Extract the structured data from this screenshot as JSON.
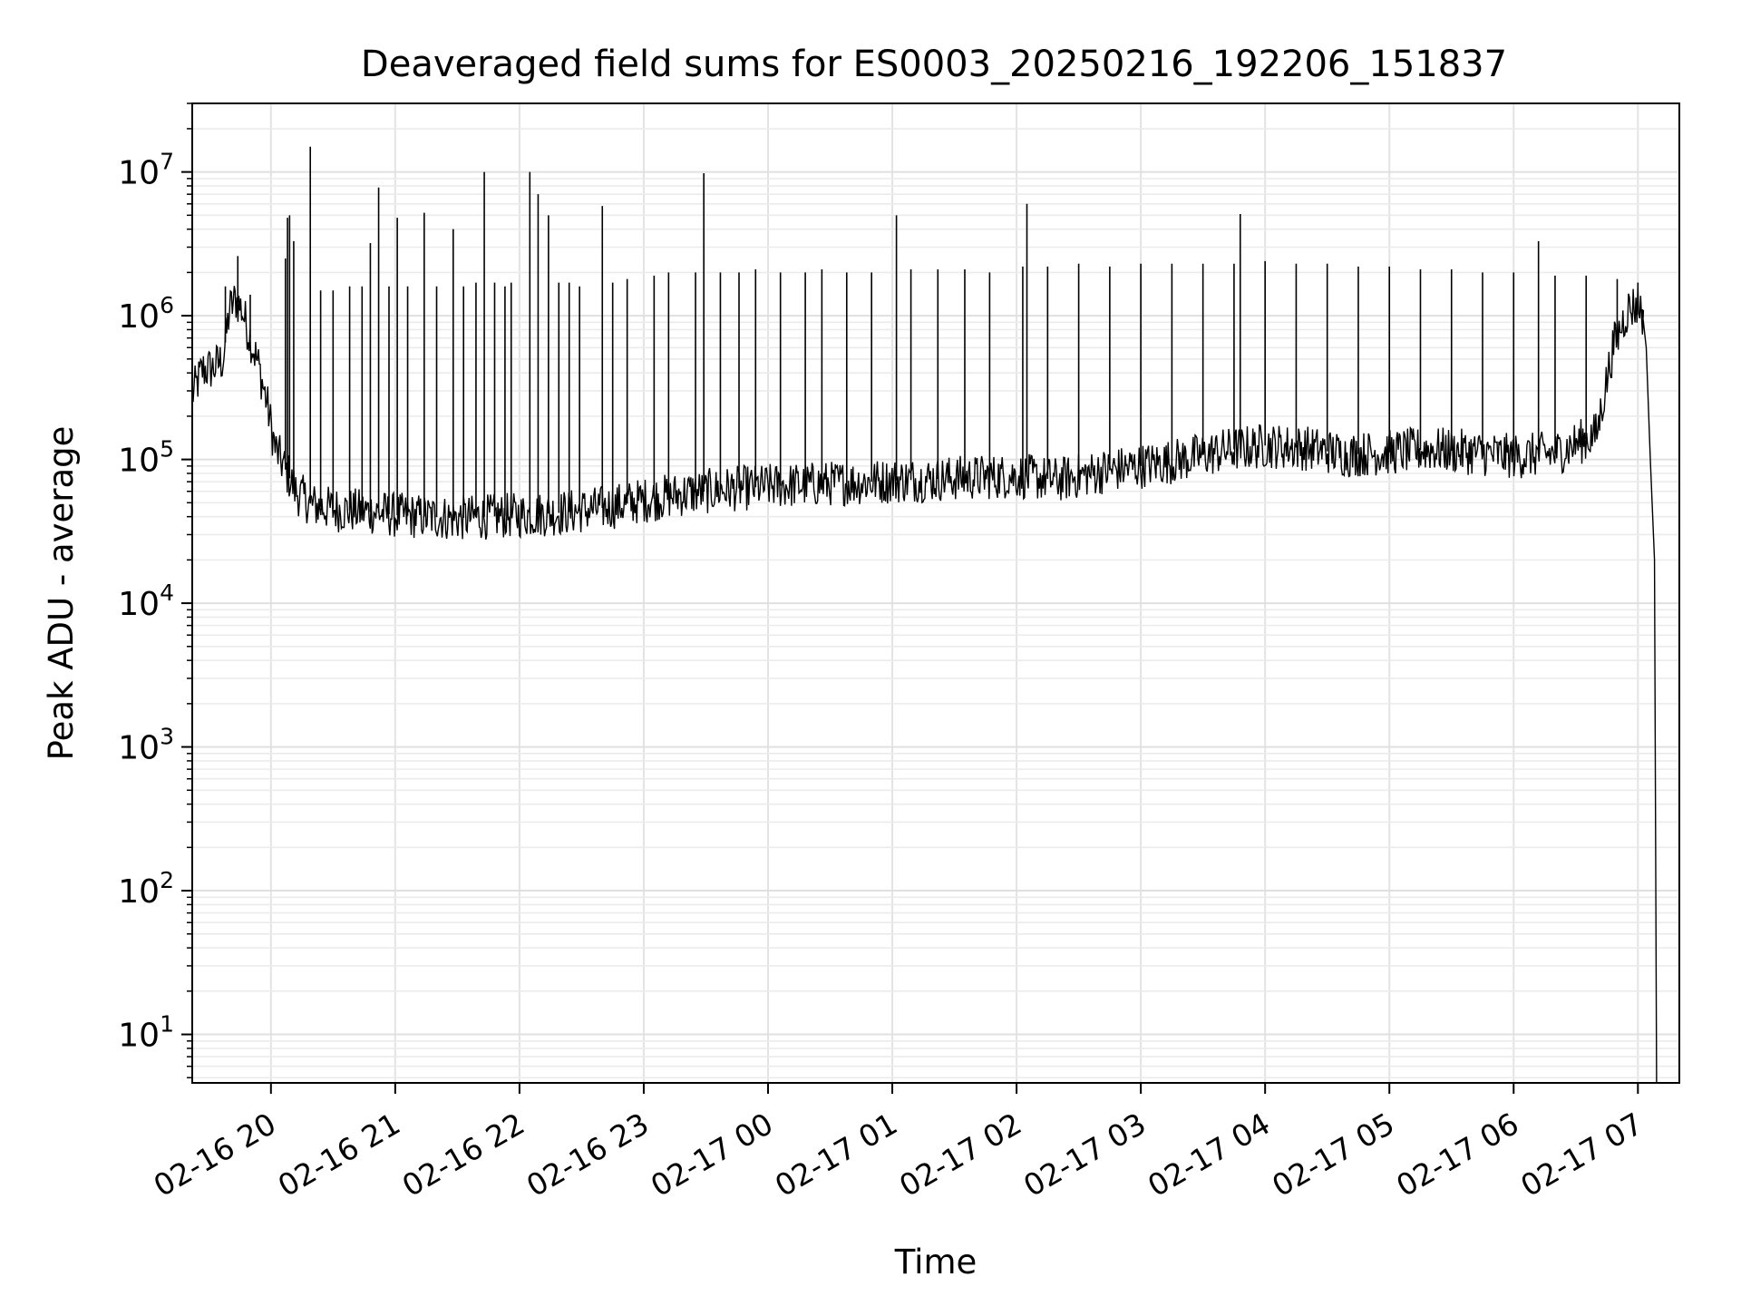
{
  "chart_data": {
    "type": "line",
    "title": "Deaveraged field sums for ES0003_20250216_192206_151837",
    "xlabel": "Time",
    "ylabel": "Peak ADU - average",
    "yscale": "log",
    "ylim": [
      4.6,
      30000000
    ],
    "xlim": [
      "2025-02-16 19:22",
      "2025-02-17 07:20"
    ],
    "grid": true,
    "x_ticks": [
      {
        "value": "2025-02-16 20:00",
        "label": "02-16 20"
      },
      {
        "value": "2025-02-16 21:00",
        "label": "02-16 21"
      },
      {
        "value": "2025-02-16 22:00",
        "label": "02-16 22"
      },
      {
        "value": "2025-02-16 23:00",
        "label": "02-16 23"
      },
      {
        "value": "2025-02-17 00:00",
        "label": "02-17 00"
      },
      {
        "value": "2025-02-17 01:00",
        "label": "02-17 01"
      },
      {
        "value": "2025-02-17 02:00",
        "label": "02-17 02"
      },
      {
        "value": "2025-02-17 03:00",
        "label": "02-17 03"
      },
      {
        "value": "2025-02-17 04:00",
        "label": "02-17 04"
      },
      {
        "value": "2025-02-17 05:00",
        "label": "02-17 05"
      },
      {
        "value": "2025-02-17 06:00",
        "label": "02-17 06"
      },
      {
        "value": "2025-02-17 07:00",
        "label": "02-17 07"
      }
    ],
    "y_ticks": [
      {
        "value": 10,
        "base": "10",
        "exp": "1"
      },
      {
        "value": 100,
        "base": "10",
        "exp": "2"
      },
      {
        "value": 1000,
        "base": "10",
        "exp": "3"
      },
      {
        "value": 10000,
        "base": "10",
        "exp": "4"
      },
      {
        "value": 100000,
        "base": "10",
        "exp": "5"
      },
      {
        "value": 1000000,
        "base": "10",
        "exp": "6"
      },
      {
        "value": 10000000,
        "base": "10",
        "exp": "7"
      }
    ],
    "series": [
      {
        "color": "#000000",
        "points": [
          [
            "2025-02-16 19:22",
            280000
          ],
          [
            "2025-02-16 19:27",
            420000
          ],
          [
            "2025-02-16 19:32",
            430000
          ],
          [
            "2025-02-16 19:37",
            500000
          ],
          [
            "2025-02-16 19:40",
            1100000
          ],
          [
            "2025-02-16 19:43",
            1300000
          ],
          [
            "2025-02-16 19:46",
            1100000
          ],
          [
            "2025-02-16 19:50",
            700000
          ],
          [
            "2025-02-16 19:54",
            450000
          ],
          [
            "2025-02-16 19:58",
            250000
          ],
          [
            "2025-02-16 20:02",
            120000
          ],
          [
            "2025-02-16 20:07",
            85000
          ],
          [
            "2025-02-16 20:12",
            60000
          ],
          [
            "2025-02-16 20:20",
            48000
          ],
          [
            "2025-02-16 20:30",
            45000
          ],
          [
            "2025-02-16 20:40",
            44000
          ],
          [
            "2025-02-16 20:50",
            43000
          ],
          [
            "2025-02-16 21:00",
            41000
          ],
          [
            "2025-02-16 21:15",
            40000
          ],
          [
            "2025-02-16 21:30",
            39000
          ],
          [
            "2025-02-16 21:45",
            40000
          ],
          [
            "2025-02-16 22:00",
            41000
          ],
          [
            "2025-02-16 22:15",
            42000
          ],
          [
            "2025-02-16 22:30",
            44000
          ],
          [
            "2025-02-16 22:45",
            47000
          ],
          [
            "2025-02-16 23:00",
            52000
          ],
          [
            "2025-02-16 23:20",
            58000
          ],
          [
            "2025-02-16 23:40",
            62000
          ],
          [
            "2025-02-17 00:00",
            65000
          ],
          [
            "2025-02-17 00:30",
            68000
          ],
          [
            "2025-02-17 01:00",
            71000
          ],
          [
            "2025-02-17 01:30",
            74000
          ],
          [
            "2025-02-17 02:00",
            77000
          ],
          [
            "2025-02-17 02:20",
            72000
          ],
          [
            "2025-02-17 02:40",
            82000
          ],
          [
            "2025-02-17 03:00",
            90000
          ],
          [
            "2025-02-17 03:20",
            100000
          ],
          [
            "2025-02-17 03:40",
            115000
          ],
          [
            "2025-02-17 04:00",
            125000
          ],
          [
            "2025-02-17 04:20",
            120000
          ],
          [
            "2025-02-17 04:40",
            108000
          ],
          [
            "2025-02-17 05:00",
            112000
          ],
          [
            "2025-02-17 05:20",
            118000
          ],
          [
            "2025-02-17 05:40",
            112000
          ],
          [
            "2025-02-17 06:00",
            105000
          ],
          [
            "2025-02-17 06:20",
            110000
          ],
          [
            "2025-02-17 06:40",
            150000
          ],
          [
            "2025-02-17 06:48",
            600000
          ],
          [
            "2025-02-17 06:55",
            1100000
          ],
          [
            "2025-02-17 07:00",
            1200000
          ],
          [
            "2025-02-17 07:02",
            1100000
          ],
          [
            "2025-02-17 07:04",
            600000
          ],
          [
            "2025-02-17 07:06",
            100000
          ],
          [
            "2025-02-17 07:08",
            20000
          ],
          [
            "2025-02-17 07:09",
            4.6
          ]
        ],
        "spikes": [
          [
            "2025-02-16 19:35",
            500000
          ],
          [
            "2025-02-16 19:38",
            1600000
          ],
          [
            "2025-02-16 19:44",
            2600000
          ],
          [
            "2025-02-16 19:50",
            1400000
          ],
          [
            "2025-02-16 20:07",
            2500000
          ],
          [
            "2025-02-16 20:08",
            4800000
          ],
          [
            "2025-02-16 20:09",
            5000000
          ],
          [
            "2025-02-16 20:11",
            3300000
          ],
          [
            "2025-02-16 20:19",
            15000000
          ],
          [
            "2025-02-16 20:24",
            1500000
          ],
          [
            "2025-02-16 20:30",
            1500000
          ],
          [
            "2025-02-16 20:38",
            1600000
          ],
          [
            "2025-02-16 20:44",
            1600000
          ],
          [
            "2025-02-16 20:48",
            3200000
          ],
          [
            "2025-02-16 20:52",
            7800000
          ],
          [
            "2025-02-16 20:57",
            1600000
          ],
          [
            "2025-02-16 21:01",
            4800000
          ],
          [
            "2025-02-16 21:06",
            1600000
          ],
          [
            "2025-02-16 21:14",
            5200000
          ],
          [
            "2025-02-16 21:20",
            1600000
          ],
          [
            "2025-02-16 21:28",
            4000000
          ],
          [
            "2025-02-16 21:33",
            1600000
          ],
          [
            "2025-02-16 21:39",
            1700000
          ],
          [
            "2025-02-16 21:43",
            10000000
          ],
          [
            "2025-02-16 21:48",
            1700000
          ],
          [
            "2025-02-16 21:53",
            1600000
          ],
          [
            "2025-02-16 21:56",
            1700000
          ],
          [
            "2025-02-16 22:05",
            10000000
          ],
          [
            "2025-02-16 22:09",
            7000000
          ],
          [
            "2025-02-16 22:14",
            5000000
          ],
          [
            "2025-02-16 22:19",
            1700000
          ],
          [
            "2025-02-16 22:24",
            1700000
          ],
          [
            "2025-02-16 22:29",
            1600000
          ],
          [
            "2025-02-16 22:40",
            5800000
          ],
          [
            "2025-02-16 22:45",
            1700000
          ],
          [
            "2025-02-16 22:52",
            1800000
          ],
          [
            "2025-02-16 23:05",
            1900000
          ],
          [
            "2025-02-16 23:12",
            2000000
          ],
          [
            "2025-02-16 23:25",
            2000000
          ],
          [
            "2025-02-16 23:29",
            9800000
          ],
          [
            "2025-02-16 23:37",
            2000000
          ],
          [
            "2025-02-16 23:46",
            2000000
          ],
          [
            "2025-02-16 23:54",
            2100000
          ],
          [
            "2025-02-17 00:06",
            2000000
          ],
          [
            "2025-02-17 00:18",
            2000000
          ],
          [
            "2025-02-17 00:26",
            2100000
          ],
          [
            "2025-02-17 00:38",
            2000000
          ],
          [
            "2025-02-17 00:50",
            2000000
          ],
          [
            "2025-02-17 01:02",
            5000000
          ],
          [
            "2025-02-17 01:09",
            2100000
          ],
          [
            "2025-02-17 01:22",
            2100000
          ],
          [
            "2025-02-17 01:35",
            2100000
          ],
          [
            "2025-02-17 01:47",
            2000000
          ],
          [
            "2025-02-17 02:03",
            2200000
          ],
          [
            "2025-02-17 02:05",
            6000000
          ],
          [
            "2025-02-17 02:15",
            2200000
          ],
          [
            "2025-02-17 02:30",
            2300000
          ],
          [
            "2025-02-17 02:45",
            2200000
          ],
          [
            "2025-02-17 03:00",
            2300000
          ],
          [
            "2025-02-17 03:15",
            2300000
          ],
          [
            "2025-02-17 03:30",
            2300000
          ],
          [
            "2025-02-17 03:45",
            2300000
          ],
          [
            "2025-02-17 03:48",
            5100000
          ],
          [
            "2025-02-17 04:00",
            2400000
          ],
          [
            "2025-02-17 04:15",
            2300000
          ],
          [
            "2025-02-17 04:30",
            2300000
          ],
          [
            "2025-02-17 04:45",
            2200000
          ],
          [
            "2025-02-17 05:00",
            2200000
          ],
          [
            "2025-02-17 05:15",
            2100000
          ],
          [
            "2025-02-17 05:30",
            2100000
          ],
          [
            "2025-02-17 05:45",
            2000000
          ],
          [
            "2025-02-17 06:00",
            2000000
          ],
          [
            "2025-02-17 06:12",
            3300000
          ],
          [
            "2025-02-17 06:20",
            1900000
          ],
          [
            "2025-02-17 06:35",
            1900000
          ],
          [
            "2025-02-17 06:50",
            1800000
          ],
          [
            "2025-02-17 07:00",
            1700000
          ]
        ]
      }
    ]
  }
}
